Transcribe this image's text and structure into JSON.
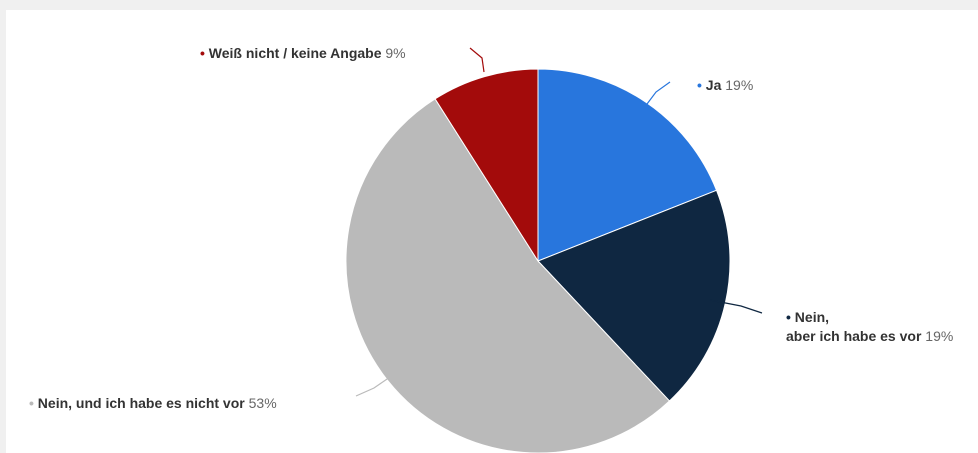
{
  "chart_data": {
    "type": "pie",
    "title": "",
    "slices": [
      {
        "label": "Ja",
        "value": 19,
        "value_label": "19%",
        "color": "#2876dd"
      },
      {
        "label": "Nein, aber ich habe es vor",
        "label_lines": [
          "Nein,",
          "aber ich habe es vor"
        ],
        "value": 19,
        "value_label": "19%",
        "color": "#0f2741"
      },
      {
        "label": "Nein, und ich habe es nicht vor",
        "value": 53,
        "value_label": "53%",
        "color": "#bababa"
      },
      {
        "label": "Weiß nicht / keine Angabe",
        "value": 9,
        "value_label": "9%",
        "color": "#a30b0b"
      }
    ],
    "start_angle": "12 o'clock",
    "direction": "clockwise",
    "legend": "none",
    "labels": "outside with leader lines"
  }
}
